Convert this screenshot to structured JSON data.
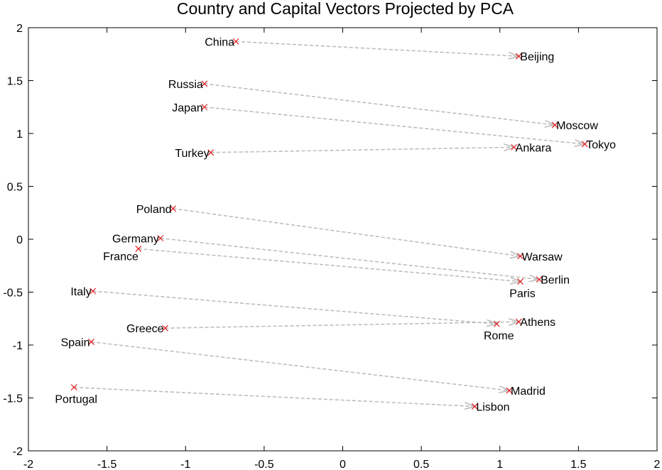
{
  "chart_data": {
    "type": "scatter",
    "title": "Country and Capital Vectors Projected by PCA",
    "xlabel": "",
    "ylabel": "",
    "xlim": [
      -2,
      2
    ],
    "ylim": [
      -2,
      2
    ],
    "xticks": [
      -2,
      -1.5,
      -1,
      -0.5,
      0,
      0.5,
      1,
      1.5,
      2
    ],
    "yticks": [
      -2,
      -1.5,
      -1,
      -0.5,
      0,
      0.5,
      1,
      1.5,
      2
    ],
    "xtick_labels": [
      "-2",
      "-1.5",
      "-1",
      "-0.5",
      "0",
      "0.5",
      "1",
      "1.5",
      "2"
    ],
    "ytick_labels": [
      "-2",
      "-1.5",
      "-1",
      "-0.5",
      "0",
      "0.5",
      "1",
      "1.5",
      "2"
    ],
    "grid": false,
    "colors": {
      "marker": "#e31a1c",
      "arrow": "#bdbdbd",
      "frame": "#000000"
    },
    "points": [
      {
        "label": "China",
        "x": -0.68,
        "y": 1.87,
        "align": "left"
      },
      {
        "label": "Beijing",
        "x": 1.12,
        "y": 1.73,
        "align": "right"
      },
      {
        "label": "Russia",
        "x": -0.88,
        "y": 1.47,
        "align": "left"
      },
      {
        "label": "Moscow",
        "x": 1.35,
        "y": 1.08,
        "align": "right"
      },
      {
        "label": "Japan",
        "x": -0.88,
        "y": 1.25,
        "align": "left"
      },
      {
        "label": "Tokyo",
        "x": 1.54,
        "y": 0.9,
        "align": "right"
      },
      {
        "label": "Turkey",
        "x": -0.84,
        "y": 0.82,
        "align": "left"
      },
      {
        "label": "Ankara",
        "x": 1.09,
        "y": 0.87,
        "align": "right"
      },
      {
        "label": "Poland",
        "x": -1.08,
        "y": 0.29,
        "align": "left"
      },
      {
        "label": "Warsaw",
        "x": 1.13,
        "y": -0.16,
        "align": "right"
      },
      {
        "label": "Germany",
        "x": -1.16,
        "y": 0.01,
        "align": "left"
      },
      {
        "label": "Berlin",
        "x": 1.25,
        "y": -0.38,
        "align": "right"
      },
      {
        "label": "France",
        "x": -1.3,
        "y": -0.09,
        "align": "below-left"
      },
      {
        "label": "Paris",
        "x": 1.13,
        "y": -0.4,
        "align": "below"
      },
      {
        "label": "Italy",
        "x": -1.59,
        "y": -0.49,
        "align": "left"
      },
      {
        "label": "Rome",
        "x": 0.98,
        "y": -0.8,
        "align": "below"
      },
      {
        "label": "Greece",
        "x": -1.13,
        "y": -0.84,
        "align": "left"
      },
      {
        "label": "Athens",
        "x": 1.12,
        "y": -0.78,
        "align": "right"
      },
      {
        "label": "Spain",
        "x": -1.6,
        "y": -0.97,
        "align": "left"
      },
      {
        "label": "Madrid",
        "x": 1.06,
        "y": -1.43,
        "align": "right"
      },
      {
        "label": "Portugal",
        "x": -1.71,
        "y": -1.4,
        "align": "below"
      },
      {
        "label": "Lisbon",
        "x": 0.84,
        "y": -1.58,
        "align": "right"
      }
    ],
    "arrows": [
      {
        "from": "China",
        "to": "Beijing"
      },
      {
        "from": "Russia",
        "to": "Moscow"
      },
      {
        "from": "Japan",
        "to": "Tokyo"
      },
      {
        "from": "Turkey",
        "to": "Ankara"
      },
      {
        "from": "Poland",
        "to": "Warsaw"
      },
      {
        "from": "Germany",
        "to": "Berlin"
      },
      {
        "from": "France",
        "to": "Paris"
      },
      {
        "from": "Italy",
        "to": "Rome"
      },
      {
        "from": "Greece",
        "to": "Athens"
      },
      {
        "from": "Spain",
        "to": "Madrid"
      },
      {
        "from": "Portugal",
        "to": "Lisbon"
      }
    ]
  }
}
